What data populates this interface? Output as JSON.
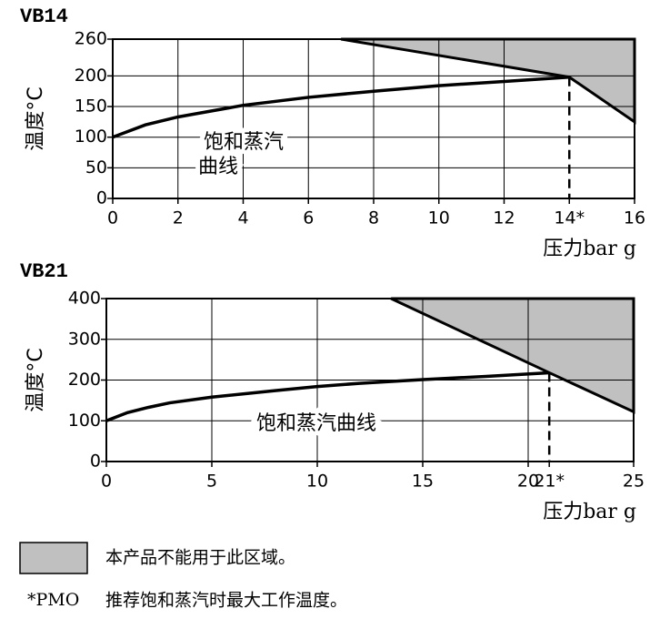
{
  "chart_data": [
    {
      "type": "line",
      "title": "VB14",
      "y_label": "温度°C",
      "x_label": "压力bar g",
      "xlim": [
        0,
        16
      ],
      "xticks": [
        0,
        2,
        4,
        6,
        8,
        10,
        12,
        {
          "value": 14,
          "label": "14*"
        },
        16
      ],
      "ylim": [
        0,
        260
      ],
      "yticks": [
        0,
        50,
        100,
        150,
        200,
        260
      ],
      "grid": true,
      "curve": {
        "x": [
          0,
          1,
          2,
          4,
          6,
          8,
          10,
          12,
          14
        ],
        "y": [
          100,
          120,
          133,
          152,
          165,
          175,
          184,
          191,
          198
        ],
        "color": "#000000",
        "label": [
          "饱和蒸汽",
          "曲线"
        ]
      },
      "region": {
        "x": [
          7,
          14,
          16,
          16
        ],
        "y": [
          260,
          198,
          125,
          260
        ],
        "color": "#c0c0c0"
      }
    },
    {
      "type": "line",
      "title": "VB21",
      "y_label": "温度°C",
      "x_label": "压力bar g",
      "xlim": [
        0,
        25
      ],
      "xticks": [
        0,
        5,
        10,
        15,
        20,
        {
          "value": 21,
          "label": "21*"
        },
        25
      ],
      "ylim": [
        0,
        400
      ],
      "yticks": [
        0,
        100,
        200,
        300,
        400
      ],
      "grid": true,
      "curve": {
        "x": [
          0,
          1,
          2,
          3,
          5,
          8,
          10,
          12,
          15,
          18,
          21
        ],
        "y": [
          100,
          120,
          133,
          144,
          158,
          174,
          184,
          192,
          201,
          209,
          218
        ],
        "color": "#000000",
        "label": [
          "饱和蒸汽曲线"
        ]
      },
      "region": {
        "x": [
          13.5,
          21,
          25,
          25
        ],
        "y": [
          400,
          218,
          122,
          400
        ],
        "color": "#c0c0c0"
      }
    }
  ],
  "footnotes": {
    "region_note": "本产品不能用于此区域。",
    "pmo_symbol": "*PMO",
    "pmo_note": "推荐饱和蒸汽时最大工作温度。"
  }
}
